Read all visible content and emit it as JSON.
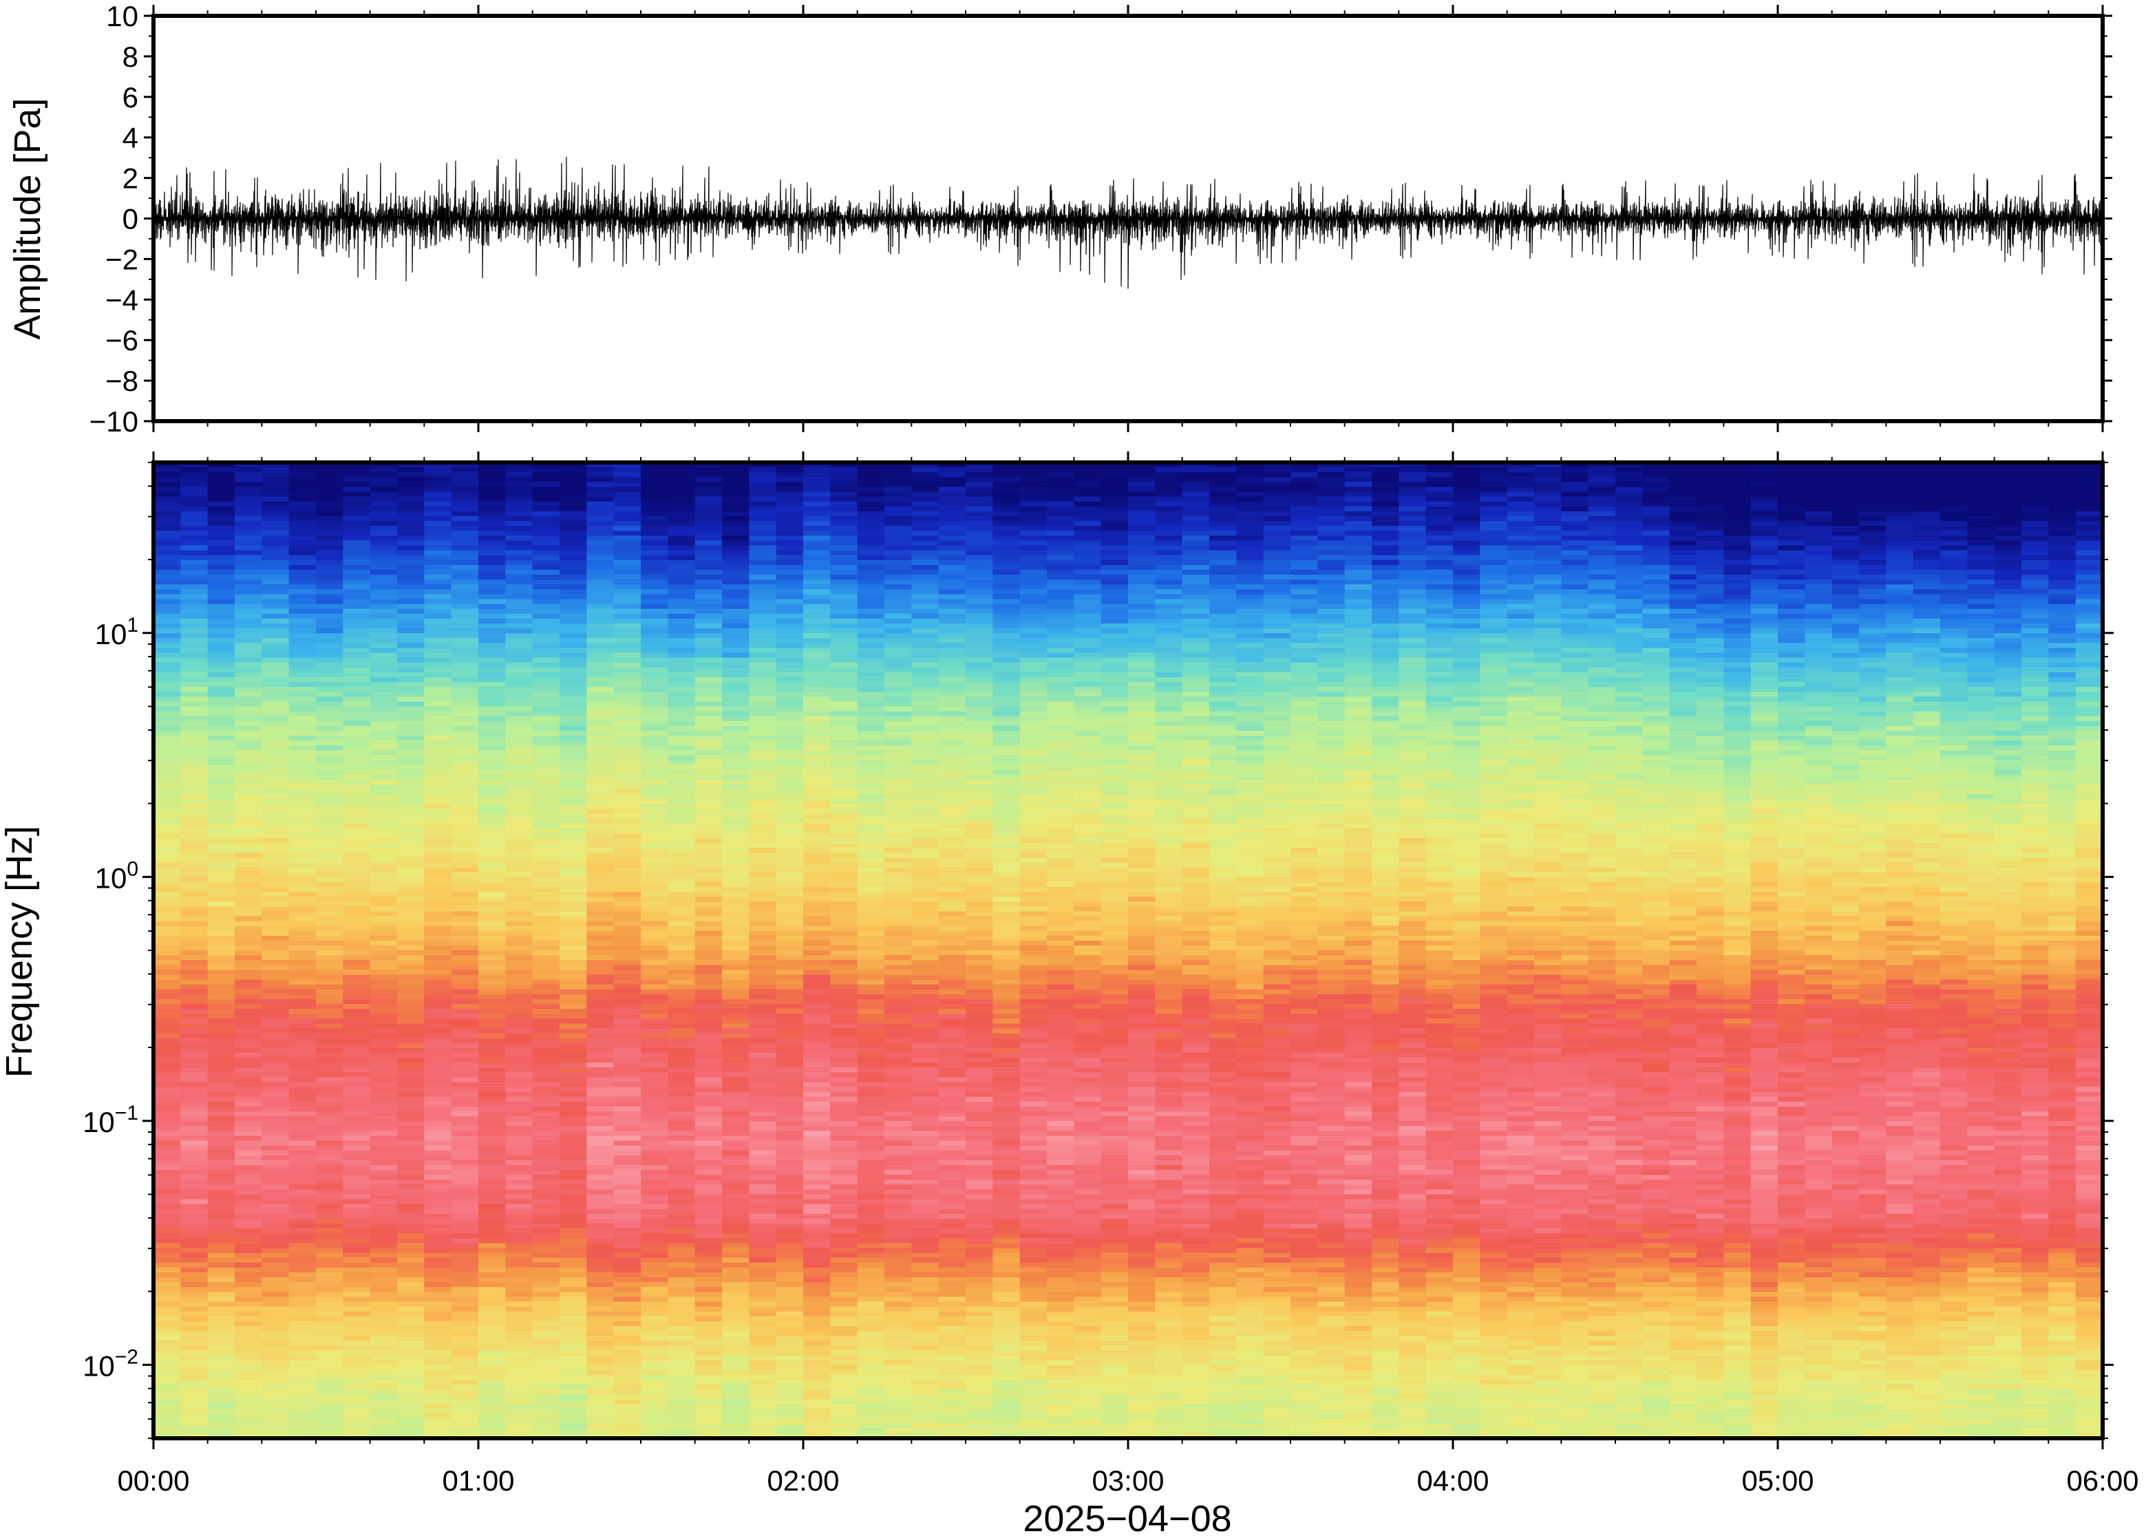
{
  "chart_data": [
    {
      "type": "line",
      "ylabel": "Amplitude [Pa]",
      "ylim": [
        -10,
        10
      ],
      "yticks": [
        "10",
        "8",
        "6",
        "4",
        "2",
        "0",
        "−2",
        "−4",
        "−6",
        "−8",
        "−10"
      ],
      "ytick_values": [
        10,
        8,
        6,
        4,
        2,
        0,
        -2,
        -4,
        -6,
        -8,
        -10
      ],
      "xlim": [
        "00:00",
        "06:00"
      ],
      "grid": false,
      "series": [
        {
          "description": "pressure waveform, noise band roughly ±1.2 Pa with peaks near ±3 Pa",
          "color": "#000000",
          "envelope_x": [
            "00:00",
            "00:30",
            "01:00",
            "01:30",
            "02:00",
            "02:30",
            "03:00",
            "03:30",
            "04:00",
            "04:30",
            "05:00",
            "05:30",
            "06:00"
          ],
          "envelope_max": [
            2.5,
            2.7,
            2.9,
            3.2,
            1.8,
            1.7,
            2.1,
            1.9,
            1.8,
            2.0,
            1.9,
            2.4,
            2.5
          ],
          "envelope_min": [
            -2.6,
            -3.2,
            -3.1,
            -2.4,
            -1.8,
            -1.9,
            -3.5,
            -2.2,
            -2.0,
            -2.1,
            -2.0,
            -2.6,
            -3.0
          ]
        }
      ]
    },
    {
      "type": "heatmap",
      "ylabel": "Frequency [Hz]",
      "yscale": "log",
      "ylim": [
        0.005,
        50
      ],
      "yticks": [
        {
          "base": "10",
          "exp": "1",
          "value": 10
        },
        {
          "base": "10",
          "exp": "0",
          "value": 1
        },
        {
          "base": "10",
          "exp": "−1",
          "value": 0.1
        },
        {
          "base": "10",
          "exp": "−2",
          "value": 0.01
        }
      ],
      "xlabel": "2025−04−08",
      "xticks": [
        "00:00",
        "01:00",
        "02:00",
        "03:00",
        "04:00",
        "05:00",
        "06:00"
      ],
      "xlim": [
        "00:00",
        "06:00"
      ],
      "colormap": "rainbow (blue = low power, red/pink = high power)",
      "colorbar": false,
      "power_profile_by_frequency": [
        {
          "frequency_hz": 40,
          "level": 0.02
        },
        {
          "frequency_hz": 20,
          "level": 0.14
        },
        {
          "frequency_hz": 10,
          "level": 0.3
        },
        {
          "frequency_hz": 5,
          "level": 0.45
        },
        {
          "frequency_hz": 2,
          "level": 0.55
        },
        {
          "frequency_hz": 1,
          "level": 0.63
        },
        {
          "frequency_hz": 0.5,
          "level": 0.72
        },
        {
          "frequency_hz": 0.3,
          "level": 0.83
        },
        {
          "frequency_hz": 0.15,
          "level": 0.9
        },
        {
          "frequency_hz": 0.08,
          "level": 0.94
        },
        {
          "frequency_hz": 0.04,
          "level": 0.9
        },
        {
          "frequency_hz": 0.025,
          "level": 0.78
        },
        {
          "frequency_hz": 0.015,
          "level": 0.66
        },
        {
          "frequency_hz": 0.007,
          "level": 0.55
        }
      ],
      "notable": "darker blue (lower high-frequency power) between about 04:40 and 06:00"
    }
  ],
  "colors": {
    "background": "#ffffff",
    "frame": "#000000",
    "waveform": "#000000"
  }
}
